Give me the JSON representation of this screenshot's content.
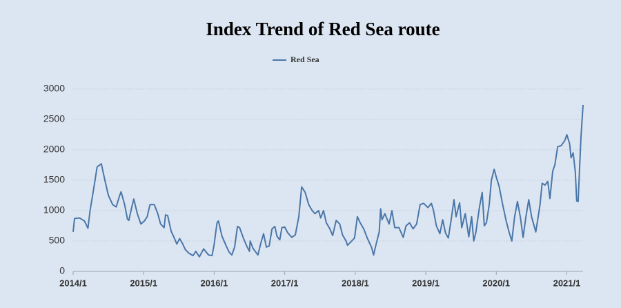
{
  "chart_data": {
    "type": "line",
    "title": "Index Trend of Red Sea route",
    "xlim": [
      2014,
      2021.23
    ],
    "xticks": [
      {
        "value": 2014,
        "label": "2014/1"
      },
      {
        "value": 2015,
        "label": "2015/1"
      },
      {
        "value": 2016,
        "label": "2016/1"
      },
      {
        "value": 2017,
        "label": "2017/1"
      },
      {
        "value": 2018,
        "label": "2018/1"
      },
      {
        "value": 2019,
        "label": "2019/1"
      },
      {
        "value": 2020,
        "label": "2020/1"
      },
      {
        "value": 2021,
        "label": "2021/1"
      }
    ],
    "ylim": [
      0,
      3000
    ],
    "yticks": [
      0,
      500,
      1000,
      1500,
      2000,
      2500,
      3000
    ],
    "grid": true,
    "legend": "top",
    "x": [
      2014.0,
      2014.02,
      2014.09,
      2014.16,
      2014.21,
      2014.24,
      2014.29,
      2014.34,
      2014.4,
      2014.45,
      2014.5,
      2014.56,
      2014.61,
      2014.66,
      2014.68,
      2014.73,
      2014.77,
      2014.79,
      2014.83,
      2014.86,
      2014.91,
      2014.96,
      2015.01,
      2015.05,
      2015.09,
      2015.15,
      2015.2,
      2015.24,
      2015.29,
      2015.31,
      2015.34,
      2015.39,
      2015.43,
      2015.47,
      2015.51,
      2015.55,
      2015.59,
      2015.64,
      2015.7,
      2015.74,
      2015.79,
      2015.85,
      2015.92,
      2015.97,
      2016.0,
      2016.04,
      2016.06,
      2016.11,
      2016.17,
      2016.21,
      2016.25,
      2016.29,
      2016.33,
      2016.36,
      2016.41,
      2016.46,
      2016.5,
      2016.51,
      2016.55,
      2016.62,
      2016.66,
      2016.7,
      2016.74,
      2016.78,
      2016.82,
      2016.86,
      2016.89,
      2016.93,
      2016.96,
      2017.0,
      2017.04,
      2017.1,
      2017.15,
      2017.2,
      2017.24,
      2017.29,
      2017.34,
      2017.39,
      2017.43,
      2017.48,
      2017.51,
      2017.55,
      2017.59,
      2017.64,
      2017.68,
      2017.73,
      2017.78,
      2017.82,
      2017.87,
      2017.89,
      2017.95,
      2017.99,
      2018.03,
      2018.07,
      2018.12,
      2018.17,
      2018.23,
      2018.26,
      2018.29,
      2018.34,
      2018.36,
      2018.38,
      2018.42,
      2018.48,
      2018.52,
      2018.56,
      2018.62,
      2018.68,
      2018.72,
      2018.77,
      2018.82,
      2018.87,
      2018.92,
      2018.97,
      2019.03,
      2019.08,
      2019.11,
      2019.15,
      2019.2,
      2019.24,
      2019.28,
      2019.32,
      2019.36,
      2019.4,
      2019.43,
      2019.48,
      2019.51,
      2019.56,
      2019.61,
      2019.65,
      2019.68,
      2019.71,
      2019.76,
      2019.8,
      2019.83,
      2019.86,
      2019.9,
      2019.93,
      2019.97,
      2020.0,
      2020.04,
      2020.09,
      2020.14,
      2020.18,
      2020.22,
      2020.26,
      2020.3,
      2020.34,
      2020.38,
      2020.42,
      2020.46,
      2020.5,
      2020.56,
      2020.59,
      2020.62,
      2020.65,
      2020.69,
      2020.73,
      2020.76,
      2020.8,
      2020.83,
      2020.87,
      2020.92,
      2020.97,
      2021.0,
      2021.04,
      2021.06,
      2021.09,
      2021.12,
      2021.14,
      2021.16,
      2021.2,
      2021.23
    ],
    "series": [
      {
        "name": "Red Sea",
        "color": "#4a76a8",
        "values": [
          650,
          870,
          880,
          830,
          710,
          1000,
          1350,
          1720,
          1770,
          1500,
          1250,
          1100,
          1060,
          1250,
          1310,
          1100,
          860,
          840,
          1050,
          1190,
          950,
          780,
          830,
          900,
          1100,
          1100,
          950,
          780,
          720,
          930,
          920,
          660,
          560,
          450,
          540,
          460,
          360,
          300,
          260,
          330,
          240,
          370,
          270,
          260,
          450,
          800,
          830,
          580,
          420,
          320,
          270,
          400,
          740,
          720,
          560,
          420,
          330,
          500,
          380,
          270,
          460,
          620,
          400,
          420,
          700,
          740,
          580,
          520,
          720,
          730,
          640,
          560,
          600,
          900,
          1390,
          1300,
          1100,
          1000,
          950,
          1000,
          880,
          1000,
          800,
          700,
          590,
          840,
          780,
          600,
          500,
          430,
          500,
          550,
          900,
          800,
          700,
          550,
          400,
          270,
          420,
          650,
          1030,
          850,
          950,
          780,
          1000,
          720,
          720,
          560,
          750,
          800,
          700,
          780,
          1100,
          1120,
          1050,
          1120,
          1000,
          750,
          620,
          850,
          630,
          550,
          850,
          1180,
          900,
          1130,
          720,
          950,
          570,
          900,
          500,
          640,
          1050,
          1300,
          750,
          800,
          1100,
          1500,
          1680,
          1550,
          1400,
          1100,
          830,
          650,
          500,
          900,
          1150,
          900,
          560,
          900,
          1180,
          900,
          650,
          870,
          1100,
          1450,
          1420,
          1480,
          1200,
          1650,
          1750,
          2050,
          2070,
          2150,
          2250,
          2100,
          1870,
          1950,
          1640,
          1160,
          1150,
          2200,
          2740
        ]
      }
    ]
  }
}
